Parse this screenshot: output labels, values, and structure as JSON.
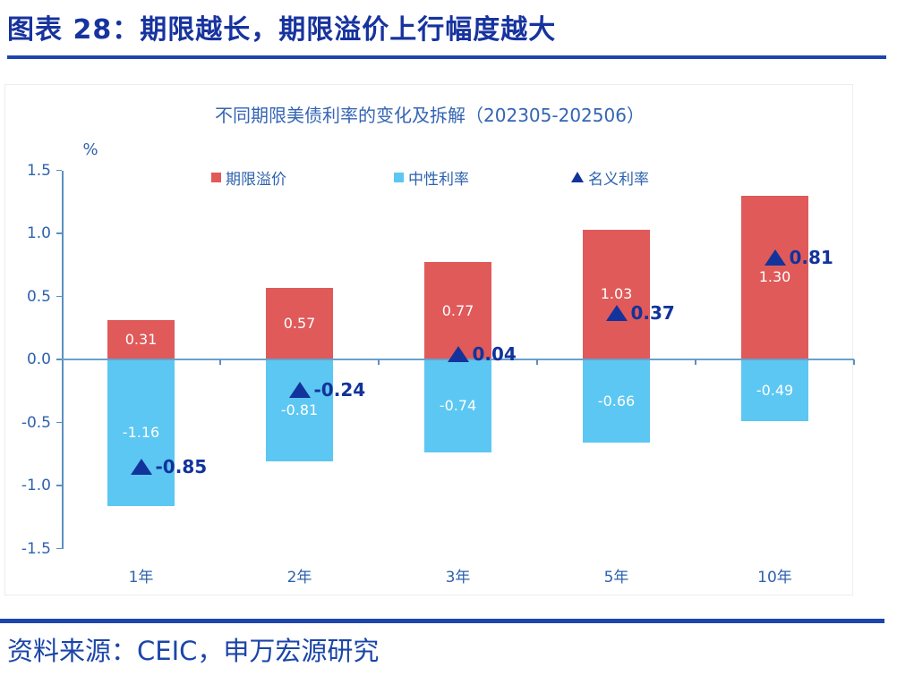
{
  "figure": {
    "title": "图表 28：期限越长，期限溢价上行幅度越大",
    "source": "资料来源：CEIC，申万宏源研究"
  },
  "colors": {
    "term_premium_red": "#E05A5A",
    "neutral_rate_lightblue": "#5CC7F2",
    "nominal_rate_navy": "#12339B",
    "axis_blue": "#5A8FC2",
    "zero_line_blue": "#68A1CD",
    "label_blue": "#2E62AE",
    "chart_title_blue": "#3465B4",
    "header_navy": "#17339E",
    "divider_blue": "#1C45AD",
    "source_blue": "#1B45A8",
    "bar_label_white": "#FFFFFF"
  },
  "chart_data": {
    "type": "bar",
    "title": "不同期限美债利率的变化及拆解（202305-202506）",
    "unit_label": "%",
    "categories": [
      "1年",
      "2年",
      "3年",
      "5年",
      "10年"
    ],
    "series": [
      {
        "name": "期限溢价",
        "type": "bar",
        "marker": "square-red",
        "values": [
          0.31,
          0.57,
          0.77,
          1.03,
          1.3
        ]
      },
      {
        "name": "中性利率",
        "type": "bar",
        "marker": "square-lightblue",
        "values": [
          -1.16,
          -0.81,
          -0.74,
          -0.66,
          -0.49
        ]
      },
      {
        "name": "名义利率",
        "type": "scatter-triangle",
        "marker": "triangle-navy",
        "values": [
          -0.85,
          -0.24,
          0.04,
          0.37,
          0.81
        ]
      }
    ],
    "ylim": [
      -1.5,
      1.5
    ],
    "ytick_step": 0.5,
    "yticks": [
      "1.5",
      "1.0",
      "0.5",
      "0.0",
      "-0.5",
      "-1.0",
      "-1.5"
    ],
    "grid": "none",
    "legend_position": "top"
  }
}
